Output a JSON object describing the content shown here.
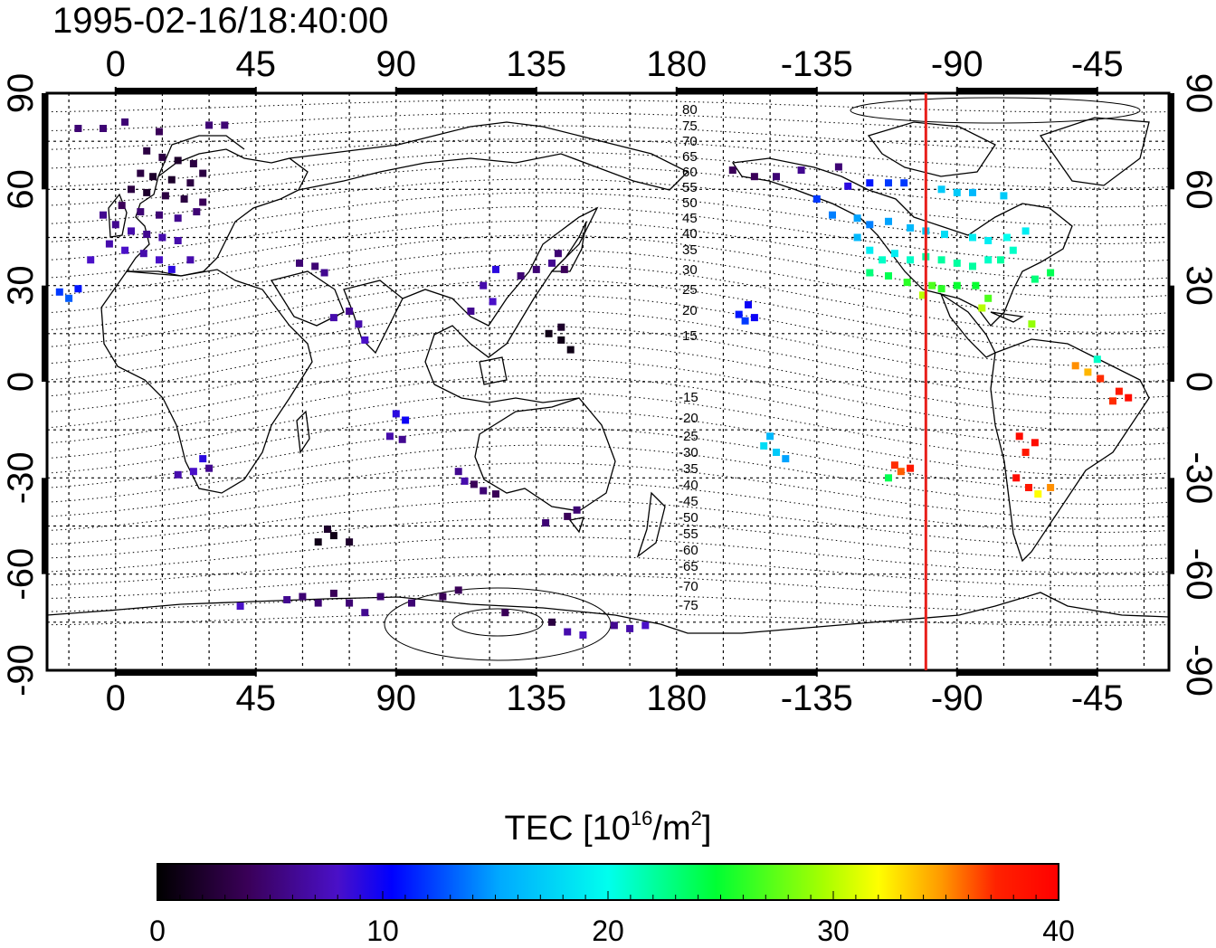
{
  "title": "1995-02-16/18:40:00",
  "top_ticks": [
    "0",
    "45",
    "90",
    "135",
    "180",
    "-135",
    "-90",
    "-45"
  ],
  "bottom_ticks": [
    "0",
    "45",
    "90",
    "135",
    "180",
    "-135",
    "-90",
    "-45"
  ],
  "left_ticks": [
    "90",
    "60",
    "30",
    "0",
    "-30",
    "-60",
    "-90"
  ],
  "right_ticks": [
    "90",
    "60",
    "30",
    "0",
    "-30",
    "-60",
    "-90"
  ],
  "contour_labels_north": [
    "80",
    "75",
    "70",
    "65",
    "60",
    "55",
    "50",
    "45",
    "40",
    "35",
    "30",
    "25",
    "20",
    "15"
  ],
  "contour_labels_south": [
    "-15",
    "-20",
    "-25",
    "-30",
    "-35",
    "-40",
    "-45",
    "-50",
    "-55",
    "-60",
    "-65",
    "-70",
    "-75"
  ],
  "colorbar": {
    "title_prefix": "TEC  [10",
    "title_sup1": "16",
    "title_mid": "/m",
    "title_sup2": "2",
    "title_suffix": "]",
    "ticks": [
      "0",
      "10",
      "20",
      "30",
      "40"
    ],
    "min": 0,
    "max": 40
  },
  "terminator_color": "#e8201c",
  "terminator_lon": -100,
  "tec_points": [
    {
      "lon": -12,
      "lat": 79,
      "v": 5
    },
    {
      "lon": -4,
      "lat": 79,
      "v": 5
    },
    {
      "lon": 3,
      "lat": 81,
      "v": 5
    },
    {
      "lon": 30,
      "lat": 80,
      "v": 5
    },
    {
      "lon": 35,
      "lat": 80,
      "v": 5
    },
    {
      "lon": 14,
      "lat": 78,
      "v": 4
    },
    {
      "lon": 10,
      "lat": 72,
      "v": 3
    },
    {
      "lon": 15,
      "lat": 70,
      "v": 3
    },
    {
      "lon": 20,
      "lat": 69,
      "v": 2
    },
    {
      "lon": 25,
      "lat": 68,
      "v": 3
    },
    {
      "lon": 8,
      "lat": 65,
      "v": 3
    },
    {
      "lon": 12,
      "lat": 64,
      "v": 2
    },
    {
      "lon": 18,
      "lat": 63,
      "v": 2
    },
    {
      "lon": 24,
      "lat": 62,
      "v": 3
    },
    {
      "lon": 28,
      "lat": 65,
      "v": 3
    },
    {
      "lon": 5,
      "lat": 60,
      "v": 3
    },
    {
      "lon": 10,
      "lat": 59,
      "v": 2
    },
    {
      "lon": 16,
      "lat": 58,
      "v": 3
    },
    {
      "lon": 22,
      "lat": 57,
      "v": 3
    },
    {
      "lon": 28,
      "lat": 56,
      "v": 4
    },
    {
      "lon": 2,
      "lat": 55,
      "v": 4
    },
    {
      "lon": 8,
      "lat": 53,
      "v": 5
    },
    {
      "lon": 14,
      "lat": 52,
      "v": 5
    },
    {
      "lon": 20,
      "lat": 51,
      "v": 6
    },
    {
      "lon": 26,
      "lat": 53,
      "v": 5
    },
    {
      "lon": -4,
      "lat": 52,
      "v": 6
    },
    {
      "lon": 0,
      "lat": 49,
      "v": 6
    },
    {
      "lon": 5,
      "lat": 47,
      "v": 7
    },
    {
      "lon": 10,
      "lat": 46,
      "v": 6
    },
    {
      "lon": 15,
      "lat": 45,
      "v": 7
    },
    {
      "lon": 20,
      "lat": 44,
      "v": 7
    },
    {
      "lon": -2,
      "lat": 43,
      "v": 7
    },
    {
      "lon": 3,
      "lat": 41,
      "v": 8
    },
    {
      "lon": 9,
      "lat": 40,
      "v": 7
    },
    {
      "lon": 14,
      "lat": 38,
      "v": 8
    },
    {
      "lon": 24,
      "lat": 38,
      "v": 7
    },
    {
      "lon": 18,
      "lat": 35,
      "v": 9
    },
    {
      "lon": -8,
      "lat": 38,
      "v": 8
    },
    {
      "lon": -18,
      "lat": 28,
      "v": 12
    },
    {
      "lon": -12,
      "lat": 29,
      "v": 11
    },
    {
      "lon": -15,
      "lat": 26,
      "v": 13
    },
    {
      "lon": 59,
      "lat": 37,
      "v": 5
    },
    {
      "lon": 64,
      "lat": 36,
      "v": 5
    },
    {
      "lon": 67,
      "lat": 34,
      "v": 6
    },
    {
      "lon": 70,
      "lat": 20,
      "v": 7
    },
    {
      "lon": 75,
      "lat": 22,
      "v": 6
    },
    {
      "lon": 78,
      "lat": 18,
      "v": 7
    },
    {
      "lon": 80,
      "lat": 13,
      "v": 8
    },
    {
      "lon": 122,
      "lat": 35,
      "v": 9
    },
    {
      "lon": 118,
      "lat": 30,
      "v": 7
    },
    {
      "lon": 121,
      "lat": 25,
      "v": 8
    },
    {
      "lon": 114,
      "lat": 22,
      "v": 6
    },
    {
      "lon": 130,
      "lat": 33,
      "v": 5
    },
    {
      "lon": 135,
      "lat": 35,
      "v": 5
    },
    {
      "lon": 140,
      "lat": 37,
      "v": 6
    },
    {
      "lon": 142,
      "lat": 40,
      "v": 5
    },
    {
      "lon": 144,
      "lat": 35,
      "v": 4
    },
    {
      "lon": 139,
      "lat": 15,
      "v": 1
    },
    {
      "lon": 143,
      "lat": 13,
      "v": 1
    },
    {
      "lon": 146,
      "lat": 10,
      "v": 1
    },
    {
      "lon": 143,
      "lat": 17,
      "v": 2
    },
    {
      "lon": 90,
      "lat": -10,
      "v": 9
    },
    {
      "lon": 93,
      "lat": -12,
      "v": 10
    },
    {
      "lon": 88,
      "lat": -17,
      "v": 7
    },
    {
      "lon": 92,
      "lat": -18,
      "v": 6
    },
    {
      "lon": 110,
      "lat": -28,
      "v": 6
    },
    {
      "lon": 115,
      "lat": -32,
      "v": 4
    },
    {
      "lon": 118,
      "lat": -34,
      "v": 5
    },
    {
      "lon": 122,
      "lat": -35,
      "v": 4
    },
    {
      "lon": 112,
      "lat": -31,
      "v": 7
    },
    {
      "lon": 138,
      "lat": -44,
      "v": 5
    },
    {
      "lon": 145,
      "lat": -42,
      "v": 4
    },
    {
      "lon": 148,
      "lat": -40,
      "v": 5
    },
    {
      "lon": 28,
      "lat": -24,
      "v": 9
    },
    {
      "lon": 25,
      "lat": -28,
      "v": 8
    },
    {
      "lon": 20,
      "lat": -29,
      "v": 7
    },
    {
      "lon": 30,
      "lat": -27,
      "v": 6
    },
    {
      "lon": 65,
      "lat": -50,
      "v": 1
    },
    {
      "lon": 70,
      "lat": -48,
      "v": 1
    },
    {
      "lon": 75,
      "lat": -50,
      "v": 2
    },
    {
      "lon": 68,
      "lat": -46,
      "v": 2
    },
    {
      "lon": 40,
      "lat": -70,
      "v": 8
    },
    {
      "lon": 55,
      "lat": -68,
      "v": 6
    },
    {
      "lon": 60,
      "lat": -67,
      "v": 5
    },
    {
      "lon": 65,
      "lat": -69,
      "v": 5
    },
    {
      "lon": 70,
      "lat": -66,
      "v": 4
    },
    {
      "lon": 75,
      "lat": -69,
      "v": 5
    },
    {
      "lon": 80,
      "lat": -72,
      "v": 6
    },
    {
      "lon": 85,
      "lat": -67,
      "v": 5
    },
    {
      "lon": 95,
      "lat": -69,
      "v": 5
    },
    {
      "lon": 105,
      "lat": -67,
      "v": 4
    },
    {
      "lon": 110,
      "lat": -65,
      "v": 4
    },
    {
      "lon": 125,
      "lat": -72,
      "v": 4
    },
    {
      "lon": 140,
      "lat": -75,
      "v": 3
    },
    {
      "lon": 145,
      "lat": -78,
      "v": 7
    },
    {
      "lon": 150,
      "lat": -79,
      "v": 8
    },
    {
      "lon": 160,
      "lat": -76,
      "v": 6
    },
    {
      "lon": 165,
      "lat": -77,
      "v": 7
    },
    {
      "lon": 170,
      "lat": -76,
      "v": 8
    },
    {
      "lon": -162,
      "lat": 66,
      "v": 4
    },
    {
      "lon": -155,
      "lat": 64,
      "v": 4
    },
    {
      "lon": -148,
      "lat": 64,
      "v": 5
    },
    {
      "lon": -140,
      "lat": 66,
      "v": 6
    },
    {
      "lon": -128,
      "lat": 67,
      "v": 5
    },
    {
      "lon": -125,
      "lat": 61,
      "v": 9
    },
    {
      "lon": -118,
      "lat": 62,
      "v": 11
    },
    {
      "lon": -112,
      "lat": 62,
      "v": 12
    },
    {
      "lon": -107,
      "lat": 62,
      "v": 12
    },
    {
      "lon": -95,
      "lat": 60,
      "v": 17
    },
    {
      "lon": -90,
      "lat": 59,
      "v": 17
    },
    {
      "lon": -85,
      "lat": 59,
      "v": 16
    },
    {
      "lon": -75,
      "lat": 58,
      "v": 17
    },
    {
      "lon": -135,
      "lat": 57,
      "v": 12
    },
    {
      "lon": -130,
      "lat": 52,
      "v": 14
    },
    {
      "lon": -122,
      "lat": 51,
      "v": 15
    },
    {
      "lon": -118,
      "lat": 49,
      "v": 14
    },
    {
      "lon": -112,
      "lat": 50,
      "v": 15
    },
    {
      "lon": -105,
      "lat": 48,
      "v": 16
    },
    {
      "lon": -100,
      "lat": 47,
      "v": 17
    },
    {
      "lon": -94,
      "lat": 46,
      "v": 18
    },
    {
      "lon": -85,
      "lat": 45,
      "v": 19
    },
    {
      "lon": -80,
      "lat": 44,
      "v": 19
    },
    {
      "lon": -74,
      "lat": 45,
      "v": 20
    },
    {
      "lon": -68,
      "lat": 47,
      "v": 19
    },
    {
      "lon": -122,
      "lat": 45,
      "v": 16
    },
    {
      "lon": -118,
      "lat": 41,
      "v": 19
    },
    {
      "lon": -114,
      "lat": 38,
      "v": 21
    },
    {
      "lon": -110,
      "lat": 40,
      "v": 19
    },
    {
      "lon": -105,
      "lat": 38,
      "v": 21
    },
    {
      "lon": -100,
      "lat": 39,
      "v": 22
    },
    {
      "lon": -95,
      "lat": 38,
      "v": 22
    },
    {
      "lon": -90,
      "lat": 37,
      "v": 22
    },
    {
      "lon": -85,
      "lat": 36,
      "v": 22
    },
    {
      "lon": -80,
      "lat": 38,
      "v": 21
    },
    {
      "lon": -76,
      "lat": 38,
      "v": 22
    },
    {
      "lon": -72,
      "lat": 41,
      "v": 21
    },
    {
      "lon": -118,
      "lat": 34,
      "v": 23
    },
    {
      "lon": -112,
      "lat": 33,
      "v": 24
    },
    {
      "lon": -106,
      "lat": 31,
      "v": 26
    },
    {
      "lon": -98,
      "lat": 30,
      "v": 27
    },
    {
      "lon": -95,
      "lat": 29,
      "v": 26
    },
    {
      "lon": -90,
      "lat": 30,
      "v": 25
    },
    {
      "lon": -84,
      "lat": 30,
      "v": 25
    },
    {
      "lon": -80,
      "lat": 26,
      "v": 27
    },
    {
      "lon": -82,
      "lat": 23,
      "v": 30
    },
    {
      "lon": -66,
      "lat": 18,
      "v": 29
    },
    {
      "lon": -60,
      "lat": 34,
      "v": 24
    },
    {
      "lon": -65,
      "lat": 32,
      "v": 23
    },
    {
      "lon": -101,
      "lat": 27,
      "v": 30
    },
    {
      "lon": -157,
      "lat": 24,
      "v": 10
    },
    {
      "lon": -160,
      "lat": 21,
      "v": 11
    },
    {
      "lon": -155,
      "lat": 20,
      "v": 10
    },
    {
      "lon": -158,
      "lat": 19,
      "v": 12
    },
    {
      "lon": -150,
      "lat": -17,
      "v": 16
    },
    {
      "lon": -148,
      "lat": -22,
      "v": 17
    },
    {
      "lon": -145,
      "lat": -24,
      "v": 15
    },
    {
      "lon": -152,
      "lat": -20,
      "v": 18
    },
    {
      "lon": -110,
      "lat": -26,
      "v": 37
    },
    {
      "lon": -108,
      "lat": -28,
      "v": 36
    },
    {
      "lon": -105,
      "lat": -27,
      "v": 38
    },
    {
      "lon": -112,
      "lat": -30,
      "v": 24
    },
    {
      "lon": -52,
      "lat": 5,
      "v": 35
    },
    {
      "lon": -48,
      "lat": 3,
      "v": 34
    },
    {
      "lon": -44,
      "lat": 1,
      "v": 37
    },
    {
      "lon": -38,
      "lat": -3,
      "v": 38
    },
    {
      "lon": -35,
      "lat": -5,
      "v": 39
    },
    {
      "lon": -40,
      "lat": -6,
      "v": 37
    },
    {
      "lon": -45,
      "lat": 7,
      "v": 21
    },
    {
      "lon": -70,
      "lat": -17,
      "v": 39
    },
    {
      "lon": -65,
      "lat": -19,
      "v": 39
    },
    {
      "lon": -68,
      "lat": -22,
      "v": 38
    },
    {
      "lon": -71,
      "lat": -30,
      "v": 39
    },
    {
      "lon": -67,
      "lat": -33,
      "v": 38
    },
    {
      "lon": -64,
      "lat": -35,
      "v": 32
    },
    {
      "lon": -60,
      "lat": -33,
      "v": 35
    }
  ]
}
